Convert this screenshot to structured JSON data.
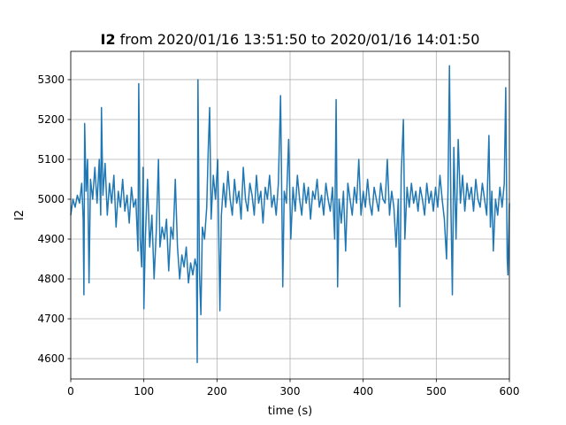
{
  "chart_data": {
    "type": "line",
    "title": [
      "I2",
      "from 2020/01/16 13:51:50 to 2020/01/16 14:01:50"
    ],
    "x_label": "time (s)",
    "y_label": "I2",
    "color": "#1f77b4",
    "grid": true,
    "xlim": [
      0,
      600
    ],
    "xticks": [
      0,
      100,
      200,
      300,
      400,
      500,
      600
    ],
    "ylim": [
      4549,
      5371
    ],
    "yticks": [
      4600,
      4700,
      4800,
      4900,
      5000,
      5100,
      5200,
      5300
    ],
    "x": [
      0,
      3,
      6,
      9,
      12,
      15,
      17,
      18,
      19,
      21,
      23,
      25,
      27,
      30,
      33,
      36,
      39,
      41,
      42,
      44,
      47,
      50,
      53,
      56,
      59,
      62,
      65,
      68,
      71,
      74,
      77,
      80,
      83,
      86,
      89,
      92,
      93,
      95,
      97,
      99,
      100,
      102,
      105,
      108,
      111,
      114,
      117,
      120,
      122,
      125,
      128,
      131,
      134,
      137,
      140,
      143,
      146,
      149,
      152,
      155,
      158,
      161,
      164,
      167,
      170,
      172,
      173,
      174,
      176,
      178,
      180,
      183,
      186,
      188,
      190,
      192,
      195,
      198,
      201,
      204,
      206,
      209,
      212,
      215,
      218,
      221,
      224,
      227,
      230,
      233,
      236,
      239,
      242,
      245,
      248,
      251,
      254,
      257,
      260,
      263,
      266,
      269,
      272,
      275,
      278,
      281,
      284,
      287,
      289,
      290,
      292,
      295,
      298,
      301,
      304,
      307,
      310,
      313,
      316,
      319,
      322,
      325,
      328,
      331,
      334,
      337,
      340,
      343,
      346,
      349,
      352,
      355,
      358,
      361,
      363,
      365,
      367,
      370,
      373,
      376,
      379,
      382,
      385,
      388,
      391,
      394,
      397,
      400,
      403,
      406,
      409,
      412,
      415,
      418,
      421,
      424,
      427,
      430,
      433,
      436,
      439,
      442,
      445,
      448,
      450,
      452,
      455,
      457,
      460,
      463,
      466,
      469,
      472,
      475,
      478,
      481,
      484,
      487,
      490,
      493,
      496,
      499,
      502,
      505,
      508,
      511,
      514,
      516,
      518,
      520,
      522,
      524,
      527,
      530,
      533,
      536,
      539,
      542,
      545,
      548,
      551,
      554,
      557,
      560,
      563,
      566,
      569,
      572,
      574,
      576,
      578,
      581,
      584,
      587,
      590,
      593,
      595,
      597,
      598,
      600
    ],
    "values": [
      4960,
      5000,
      4980,
      5010,
      4990,
      5040,
      4950,
      4760,
      5190,
      5020,
      5100,
      4790,
      5050,
      5000,
      5080,
      4990,
      5100,
      4960,
      5230,
      5010,
      5090,
      4960,
      5040,
      4990,
      5060,
      4930,
      5020,
      4980,
      5050,
      4970,
      5010,
      4940,
      5030,
      4980,
      5000,
      4870,
      5290,
      4900,
      4830,
      5080,
      4725,
      4900,
      5050,
      4880,
      4960,
      4800,
      4920,
      5100,
      4880,
      4930,
      4900,
      4950,
      4820,
      4930,
      4900,
      5050,
      4880,
      4800,
      4860,
      4830,
      4880,
      4790,
      4840,
      4810,
      4850,
      4830,
      4590,
      5300,
      4820,
      4710,
      4930,
      4900,
      4980,
      5120,
      5230,
      4950,
      5060,
      5000,
      5100,
      4720,
      4960,
      5040,
      4980,
      5070,
      5000,
      4960,
      5050,
      4990,
      5020,
      4950,
      5080,
      5000,
      4970,
      5040,
      5010,
      4960,
      5060,
      4990,
      5020,
      4940,
      5030,
      5000,
      5060,
      4980,
      5010,
      4960,
      5040,
      5260,
      4950,
      4780,
      5020,
      4990,
      5150,
      4900,
      5030,
      4970,
      5060,
      5000,
      4960,
      5040,
      4990,
      5030,
      4950,
      5020,
      5000,
      5050,
      4980,
      5010,
      4960,
      5040,
      5000,
      4970,
      5030,
      4900,
      5250,
      4780,
      5000,
      4940,
      5020,
      4870,
      5040,
      5000,
      4960,
      5030,
      4990,
      5100,
      4960,
      5020,
      4980,
      5050,
      4990,
      4960,
      5030,
      5000,
      4970,
      5040,
      5000,
      4990,
      5100,
      4960,
      5020,
      4980,
      4880,
      5000,
      4730,
      5060,
      5200,
      4900,
      5030,
      4980,
      5040,
      4990,
      5020,
      4970,
      5030,
      5000,
      4960,
      5040,
      4990,
      5020,
      4970,
      5030,
      4980,
      5060,
      5000,
      4950,
      4850,
      5020,
      5335,
      4980,
      4760,
      5130,
      4900,
      5150,
      4990,
      5060,
      4970,
      5040,
      5000,
      5030,
      4970,
      5050,
      5000,
      4980,
      5040,
      5000,
      4960,
      5160,
      4930,
      5020,
      4870,
      5000,
      4960,
      5030,
      4980,
      5040,
      5280,
      4850,
      4810,
      4990
    ]
  }
}
